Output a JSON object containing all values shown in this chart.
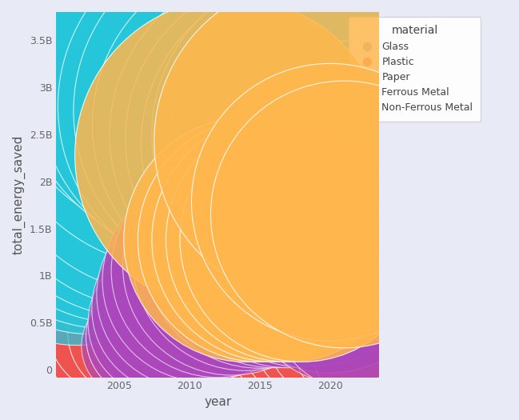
{
  "title": "",
  "xlabel": "year",
  "ylabel": "total_energy_saved",
  "legend_title": "material",
  "background_color": "#e8eaf6",
  "plot_bg_color": "#e8eaf6",
  "grid_color": "white",
  "figsize": [
    6.49,
    5.25
  ],
  "dpi": 100,
  "materials": {
    "Glass": {
      "color": "#7986cb",
      "alpha": 0.75,
      "zorder": 2,
      "years": [
        2001,
        2002,
        2003,
        2004,
        2005,
        2006,
        2007,
        2008,
        2009,
        2010,
        2011,
        2012,
        2013,
        2014,
        2015,
        2016,
        2017,
        2018,
        2019,
        2020,
        2021,
        2022
      ],
      "values": [
        3000000,
        4000000,
        5000000,
        6000000,
        8000000,
        10000000,
        12000000,
        15000000,
        18000000,
        22000000,
        25000000,
        28000000,
        30000000,
        32000000,
        35000000,
        38000000,
        40000000,
        42000000,
        45000000,
        40000000,
        35000000,
        30000000
      ]
    },
    "Plastic": {
      "color": "#ef5350",
      "alpha": 0.85,
      "zorder": 3,
      "years": [
        2002,
        2003,
        2004,
        2005,
        2006,
        2007,
        2008,
        2009,
        2010,
        2011,
        2012,
        2013,
        2014,
        2015,
        2016,
        2017,
        2018,
        2019,
        2020,
        2021,
        2022
      ],
      "values": [
        200000000,
        440000000,
        480000000,
        490000000,
        400000000,
        350000000,
        350000000,
        360000000,
        370000000,
        380000000,
        390000000,
        390000000,
        420000000,
        350000000,
        340000000,
        350000000,
        360000000,
        370000000,
        370000000,
        230000000,
        200000000
      ]
    },
    "Paper": {
      "color": "#26c6da",
      "alpha": 0.75,
      "zorder": 4,
      "years": [
        2002,
        2003,
        2004,
        2005,
        2006,
        2007,
        2008,
        2009,
        2010,
        2011,
        2012,
        2013,
        2014,
        2015,
        2016,
        2017,
        2018,
        2019,
        2020,
        2021,
        2022
      ],
      "values": [
        1700000000,
        1900000000,
        2000000000,
        2100000000,
        2200000000,
        2350000000,
        2600000000,
        3000000000,
        3400000000,
        3200000000,
        3000000000,
        2800000000,
        2750000000,
        2600000000,
        2500000000,
        2450000000,
        2400000000,
        2500000000,
        2400000000,
        1950000000,
        1750000000
      ]
    },
    "Ferrous Metal": {
      "color": "#ab47bc",
      "alpha": 0.65,
      "zorder": 5,
      "years": [
        2006,
        2007,
        2008,
        2009,
        2010,
        2011,
        2012,
        2013,
        2014,
        2015,
        2016,
        2017,
        2018,
        2019,
        2020,
        2021,
        2022
      ],
      "values": [
        250000000,
        350000000,
        500000000,
        650000000,
        800000000,
        950000000,
        1050000000,
        1100000000,
        1200000000,
        1250000000,
        1260000000,
        1260000000,
        1280000000,
        1300000000,
        1150000000,
        900000000,
        700000000
      ]
    },
    "Non-Ferrous Metal": {
      "color": "#ffb74d",
      "alpha": 0.85,
      "zorder": 6,
      "years": [
        2013,
        2014,
        2015,
        2016,
        2017,
        2018,
        2019,
        2020,
        2021
      ],
      "values": [
        2280000000,
        1380000000,
        1380000000,
        1380000000,
        1380000000,
        1380000000,
        2430000000,
        1780000000,
        1650000000
      ]
    }
  },
  "ylim": [
    -80000000,
    3800000000
  ],
  "xlim": [
    2000.5,
    2023.5
  ],
  "yticks": [
    0,
    500000000,
    1000000000,
    1500000000,
    2000000000,
    2500000000,
    3000000000,
    3500000000
  ],
  "ytick_labels": [
    "0",
    "0.5B",
    "1B",
    "1.5B",
    "2B",
    "2.5B",
    "3B",
    "3.5B"
  ],
  "xticks": [
    2005,
    2010,
    2015,
    2020
  ],
  "bubble_scale": 3.5e-05
}
